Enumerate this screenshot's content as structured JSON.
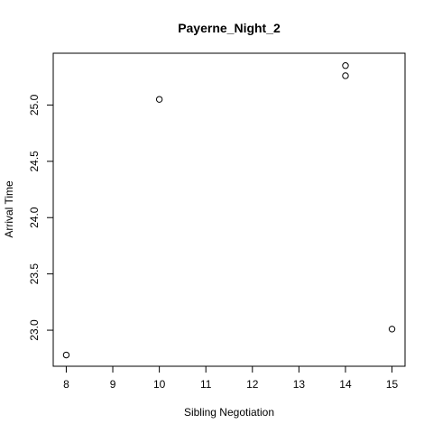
{
  "chart_data": {
    "type": "scatter",
    "title": "Payerne_Night_2",
    "xlabel": "Sibling Negotiation",
    "ylabel": "Arrival Time",
    "xlim": [
      7.72,
      15.28
    ],
    "ylim": [
      22.68,
      25.46
    ],
    "x_ticks": [
      8,
      9,
      10,
      11,
      12,
      13,
      14,
      15
    ],
    "x_tick_labels": [
      "8",
      "9",
      "10",
      "11",
      "12",
      "13",
      "14",
      "15"
    ],
    "y_ticks": [
      23.0,
      23.5,
      24.0,
      24.5,
      25.0
    ],
    "y_tick_labels": [
      "23.0",
      "23.5",
      "24.0",
      "24.5",
      "25.0"
    ],
    "grid": false,
    "legend": "none",
    "marker": "open-circle",
    "colors": {
      "point": "#000000",
      "axis": "#000000",
      "background": "#ffffff"
    },
    "points": [
      {
        "x": 8,
        "y": 22.78
      },
      {
        "x": 10,
        "y": 25.05
      },
      {
        "x": 14,
        "y": 25.35
      },
      {
        "x": 14,
        "y": 25.26
      },
      {
        "x": 15,
        "y": 23.01
      }
    ]
  }
}
